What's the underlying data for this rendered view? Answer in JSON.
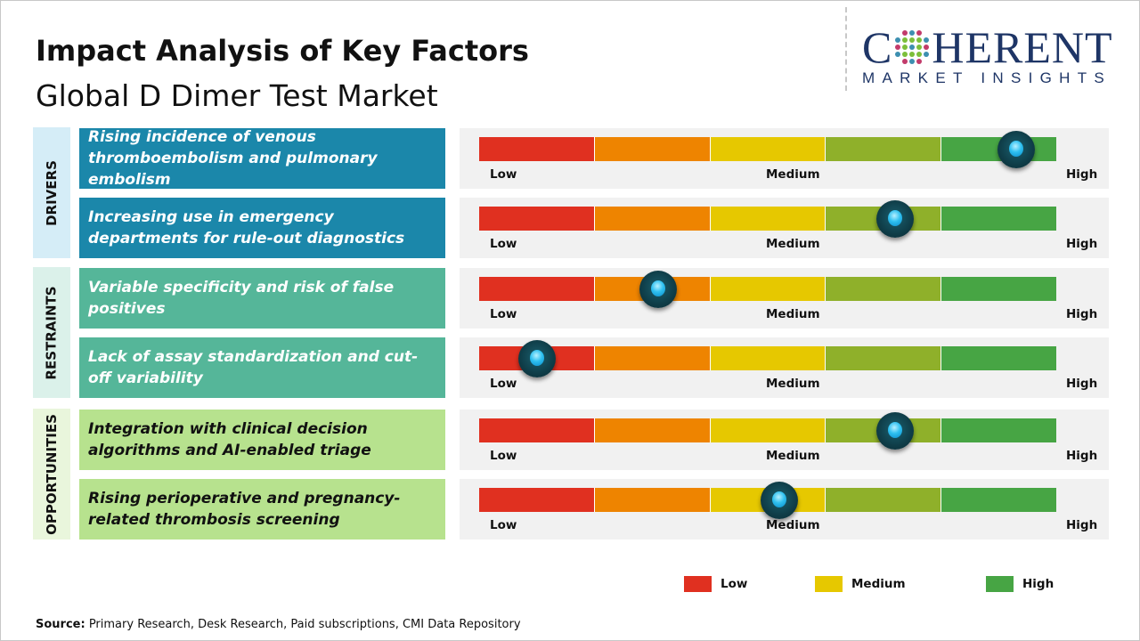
{
  "header": {
    "title": "Impact Analysis of Key Factors",
    "subtitle": "Global D Dimer Test Market"
  },
  "logo": {
    "main_left": "C",
    "main_right": "HERENT",
    "sub": "MARKET INSIGHTS"
  },
  "colors": {
    "low": "#e03020",
    "low_medium": "#ee8400",
    "medium": "#e6c800",
    "medium_high": "#8fb02a",
    "high": "#47a544",
    "drivers": "#1b87aa",
    "restraints": "#55b699",
    "opportunities": "#b7e28e"
  },
  "scale_labels": {
    "low": "Low",
    "medium": "Medium",
    "high": "High"
  },
  "categories": [
    {
      "label": "DRIVERS",
      "factors": [
        {
          "text": "Rising incidence of venous thromboembolism and pulmonary embolism",
          "impact": 0.93
        },
        {
          "text": "Increasing use in emergency departments for rule-out diagnostics",
          "impact": 0.72
        }
      ]
    },
    {
      "label": "RESTRAINTS",
      "factors": [
        {
          "text": "Variable specificity and risk of false positives",
          "impact": 0.31
        },
        {
          "text": "Lack of assay standardization and cut-off variability",
          "impact": 0.1
        }
      ]
    },
    {
      "label": "OPPORTUNITIES",
      "factors": [
        {
          "text": "Integration with clinical decision algorithms and AI-enabled triage",
          "impact": 0.72
        },
        {
          "text": "Rising perioperative and pregnancy-related thrombosis screening",
          "impact": 0.52
        }
      ]
    }
  ],
  "legend": {
    "low": "Low",
    "medium": "Medium",
    "high": "High"
  },
  "source": {
    "label": "Source:",
    "text": " Primary Research, Desk Research, Paid subscriptions, CMI Data Repository"
  }
}
